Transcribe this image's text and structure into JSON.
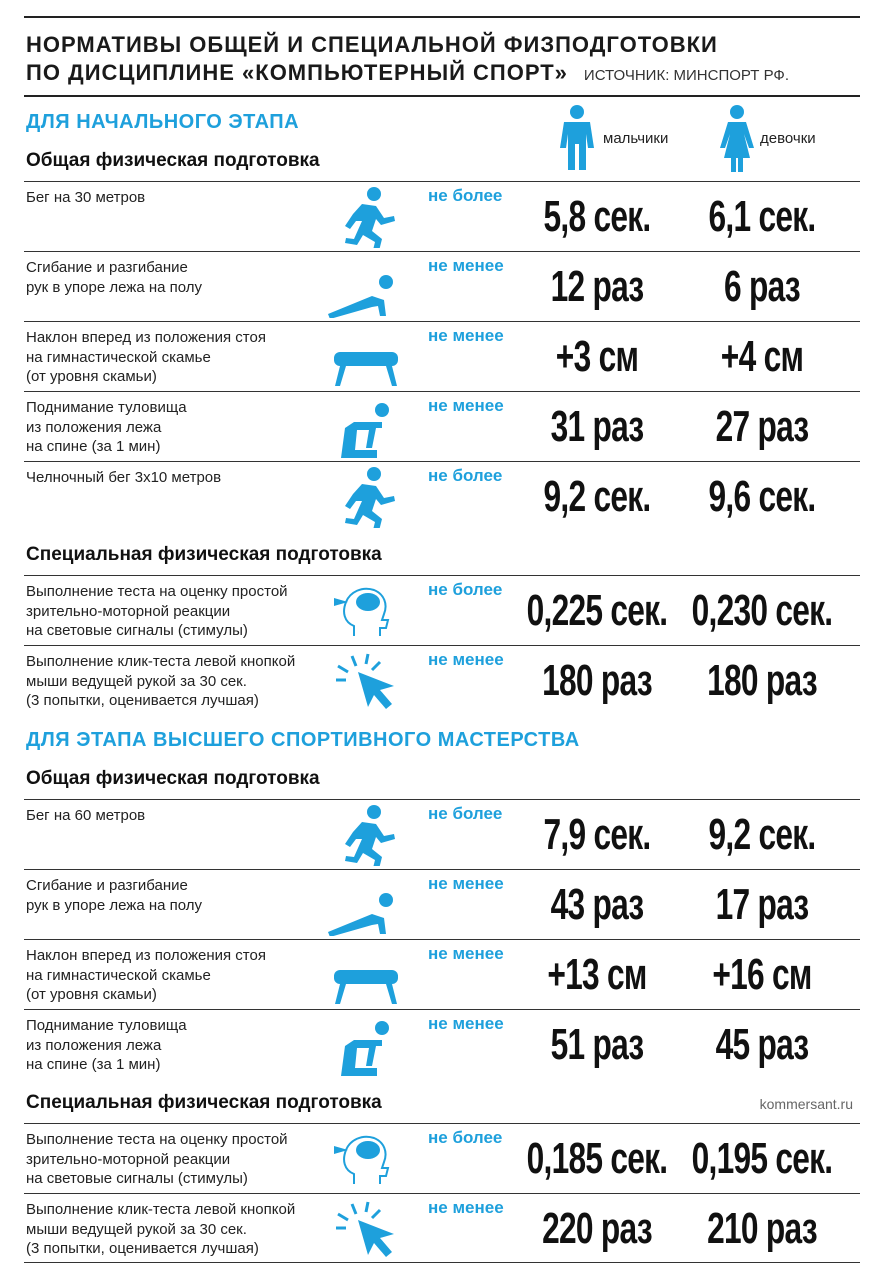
{
  "title": [
    "НОРМАТИВЫ ОБЩЕЙ И СПЕЦИАЛЬНОЙ ФИЗПОДГОТОВКИ",
    "ПО ДИСЦИПЛИНЕ «КОМПЬЮТЕРНЫЙ СПОРТ»"
  ],
  "source": "ИСТОЧНИК: МИНСПОРТ РФ.",
  "columns": {
    "boys": "мальчики",
    "girls": "девочки"
  },
  "stages": [
    {
      "title": "ДЛЯ НАЧАЛЬНОГО ЭТАПА",
      "sections": [
        {
          "title": "Общая физическая подготовка",
          "rows": [
            {
              "label": [
                "Бег на 30 метров"
              ],
              "condition": "не более",
              "boys": "5,8 сек.",
              "girls": "6,1 сек."
            },
            {
              "label": [
                "Сгибание и разгибание",
                "рук в упоре лежа на полу"
              ],
              "condition": "не менее",
              "boys": "12 раз",
              "girls": "6 раз"
            },
            {
              "label": [
                "Наклон вперед из положения стоя",
                "на гимнастической скамье",
                "(от уровня скамьи)"
              ],
              "condition": "не менее",
              "boys": "+3 см",
              "girls": "+4 см"
            },
            {
              "label": [
                "Поднимание туловища",
                "из положения лежа",
                "на спине (за 1 мин)"
              ],
              "condition": "не менее",
              "boys": "31 раз",
              "girls": "27 раз"
            },
            {
              "label": [
                "Челночный бег 3х10 метров"
              ],
              "condition": "не более",
              "boys": "9,2 сек.",
              "girls": "9,6 сек."
            }
          ]
        },
        {
          "title": "Специальная физическая подготовка",
          "rows": [
            {
              "label": [
                "Выполнение теста на оценку простой",
                "зрительно-моторной реакции",
                "на световые сигналы (стимулы)"
              ],
              "condition": "не более",
              "boys": "0,225 сек.",
              "girls": "0,230 сек."
            },
            {
              "label": [
                "Выполнение клик-теста левой кнопкой",
                "мыши ведущей рукой за 30 сек.",
                "(3 попытки, оценивается лучшая)"
              ],
              "condition": "не менее",
              "boys": "180 раз",
              "girls": "180 раз"
            }
          ]
        }
      ]
    },
    {
      "title": "ДЛЯ ЭТАПА ВЫСШЕГО СПОРТИВНОГО МАСТЕРСТВА",
      "sections": [
        {
          "title": "Общая физическая подготовка",
          "rows": [
            {
              "label": [
                "Бег на 60 метров"
              ],
              "condition": "не более",
              "boys": "7,9 сек.",
              "girls": "9,2 сек."
            },
            {
              "label": [
                "Сгибание и разгибание",
                "рук в упоре лежа на полу"
              ],
              "condition": "не менее",
              "boys": "43 раз",
              "girls": "17 раз"
            },
            {
              "label": [
                "Наклон вперед из положения стоя",
                "на гимнастической скамье",
                "(от уровня скамьи)"
              ],
              "condition": "не менее",
              "boys": "+13 см",
              "girls": "+16 см"
            },
            {
              "label": [
                "Поднимание туловища",
                "из положения лежа",
                "на спине (за 1 мин)"
              ],
              "condition": "не менее",
              "boys": "51 раз",
              "girls": "45 раз"
            }
          ]
        },
        {
          "title": "Специальная физическая подготовка",
          "rows": [
            {
              "label": [
                "Выполнение теста на оценку простой",
                "зрительно-моторной реакции",
                "на световые сигналы (стимулы)"
              ],
              "condition": "не более",
              "boys": "0,185 сек.",
              "girls": "0,195 сек."
            },
            {
              "label": [
                "Выполнение клик-теста левой кнопкой",
                "мыши ведущей рукой за 30 сек.",
                "(3 попытки, оценивается лучшая)"
              ],
              "condition": "не менее",
              "boys": "220 раз",
              "girls": "210 раз"
            }
          ]
        }
      ]
    }
  ],
  "credit": "kommersant.ru"
}
